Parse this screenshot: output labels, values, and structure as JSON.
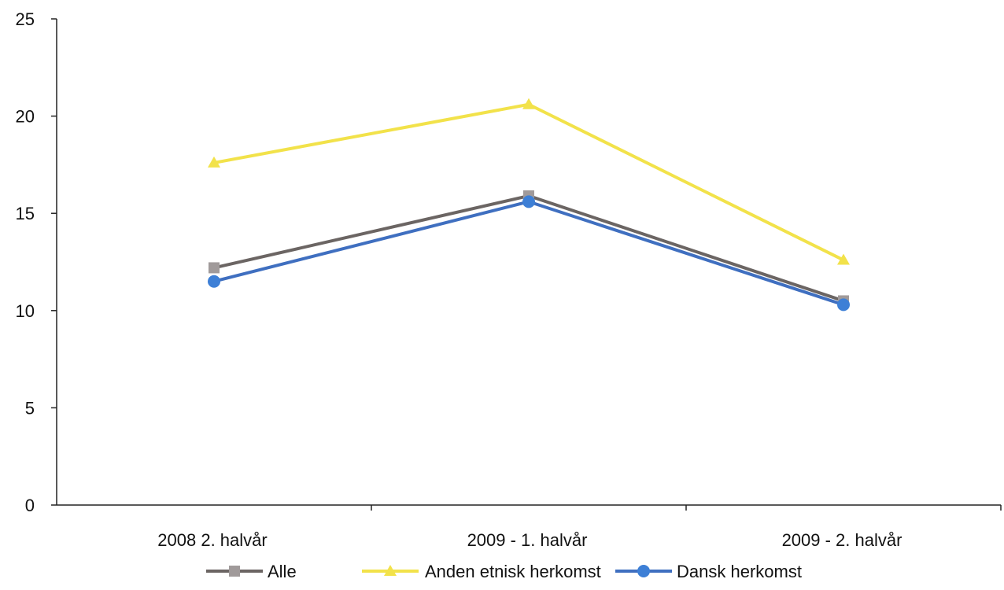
{
  "chart_data": {
    "type": "line",
    "title": "",
    "xlabel": "",
    "ylabel": "",
    "categories": [
      "2008 2. halvår",
      "2009 - 1. halvår",
      "2009 - 2. halvår"
    ],
    "ylim": [
      0,
      25
    ],
    "yticks": [
      "0",
      "5",
      "10",
      "15",
      "20",
      "25"
    ],
    "grid": false,
    "legend_position": "bottom",
    "series": [
      {
        "name": "Alle",
        "values": [
          12.2,
          15.9,
          10.5
        ],
        "color": "#6b6563",
        "marker_color": "#a09a9a",
        "marker": "square"
      },
      {
        "name": "Anden etnisk herkomst",
        "values": [
          17.6,
          20.6,
          12.6
        ],
        "color": "#f2e24a",
        "marker_color": "#f2e24a",
        "marker": "triangle"
      },
      {
        "name": "Dansk herkomst",
        "values": [
          11.5,
          15.6,
          10.3
        ],
        "color": "#3f6fc0",
        "marker_color": "#3d7fd6",
        "marker": "circle"
      }
    ]
  }
}
